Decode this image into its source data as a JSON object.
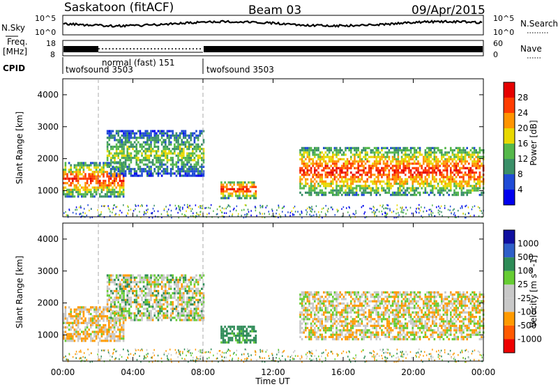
{
  "header": {
    "title_left": "Saskatoon (fitACF)",
    "title_center": "Beam 03",
    "title_right": "09/Apr/2015"
  },
  "nsky_panel": {
    "label": "N.Sky",
    "ticks_left": [
      "10^5",
      "10^0"
    ],
    "ticks_right": [
      "10^5",
      "10^0"
    ],
    "right_label": "N.Search"
  },
  "freq_panel": {
    "label_line1": "Freq.",
    "label_line2": "[MHz]",
    "ticks_left": [
      "18",
      "8"
    ],
    "ticks_right": [
      "60",
      "0"
    ],
    "right_label": "Nave"
  },
  "cpid_panel": {
    "label": "CPID",
    "segments": [
      {
        "name": "twofsound 3503",
        "start_h": 0.0
      },
      {
        "name": "normal (fast) 151",
        "start_h": 2.0
      },
      {
        "name": "twofsound 3503",
        "start_h": 8.0
      }
    ]
  },
  "x_axis": {
    "label": "Time UT",
    "range_h": [
      0,
      24
    ],
    "ticks": [
      "00:00",
      "04:00",
      "08:00",
      "12:00",
      "16:00",
      "20:00",
      "00:00"
    ]
  },
  "power_panel": {
    "ylabel": "Slant Range [km]",
    "yticks": [
      "4000",
      "3000",
      "2000",
      "1000"
    ],
    "colorbar_label": "Power [dB]",
    "colorbar_ticks": [
      "28",
      "24",
      "20",
      "16",
      "12",
      "8",
      "4"
    ]
  },
  "velocity_panel": {
    "ylabel": "Slant Range [km]",
    "yticks": [
      "4000",
      "3000",
      "2000",
      "1000"
    ],
    "colorbar_label": "Velocity [m s^-1]",
    "colorbar_ticks": [
      "1000",
      "500",
      "100",
      "25",
      "-25",
      "-100",
      "-500",
      "-1000"
    ]
  },
  "chart_data": [
    {
      "type": "heatmap",
      "title": "Saskatoon (fitACF) Beam 03 09/Apr/2015",
      "quantity": "Power [dB]",
      "xlabel": "Time UT",
      "ylabel": "Slant Range [km]",
      "xlim_hours": [
        0,
        24
      ],
      "ylim": [
        180,
        4500
      ],
      "color_range": [
        0,
        32
      ],
      "colors": [
        "#0000ee",
        "#1f4bd6",
        "#3a8f68",
        "#55b84a",
        "#e8d800",
        "#ff9400",
        "#ff3c00",
        "#e60000"
      ],
      "echo_regions": [
        {
          "t_start_h": 0.0,
          "t_end_h": 3.5,
          "range_km": [
            850,
            1900
          ],
          "peak_power_db": 28
        },
        {
          "t_start_h": 2.5,
          "t_end_h": 8.0,
          "range_km": [
            1500,
            2900
          ],
          "peak_power_db": 16
        },
        {
          "t_start_h": 9.0,
          "t_end_h": 11.0,
          "range_km": [
            800,
            1350
          ],
          "peak_power_db": 30
        },
        {
          "t_start_h": 13.5,
          "t_end_h": 24.0,
          "range_km": [
            900,
            2400
          ],
          "peak_power_db": 28
        }
      ],
      "grid": false
    },
    {
      "type": "heatmap",
      "quantity": "Velocity [m s^-1]",
      "xlabel": "Time UT",
      "ylabel": "Slant Range [km]",
      "xlim_hours": [
        0,
        24
      ],
      "ylim": [
        180,
        4500
      ],
      "color_range": [
        -1000,
        1000
      ],
      "colors": [
        "#ee0000",
        "#ff5a00",
        "#ff9a00",
        "#c8c8c8",
        "#c8c8c8",
        "#66cc33",
        "#2e8b57",
        "#2f5fc8",
        "#1010a0"
      ],
      "echo_regions": [
        {
          "t_start_h": 0.0,
          "t_end_h": 3.5,
          "range_km": [
            850,
            1900
          ],
          "velocity_ms": -100
        },
        {
          "t_start_h": 2.5,
          "t_end_h": 8.0,
          "range_km": [
            1500,
            2900
          ],
          "velocity_ms": 0
        },
        {
          "t_start_h": 9.0,
          "t_end_h": 11.0,
          "range_km": [
            800,
            1350
          ],
          "velocity_ms": 200
        },
        {
          "t_start_h": 13.5,
          "t_end_h": 24.0,
          "range_km": [
            900,
            2400
          ],
          "velocity_ms": -50
        }
      ],
      "grid": false
    }
  ]
}
